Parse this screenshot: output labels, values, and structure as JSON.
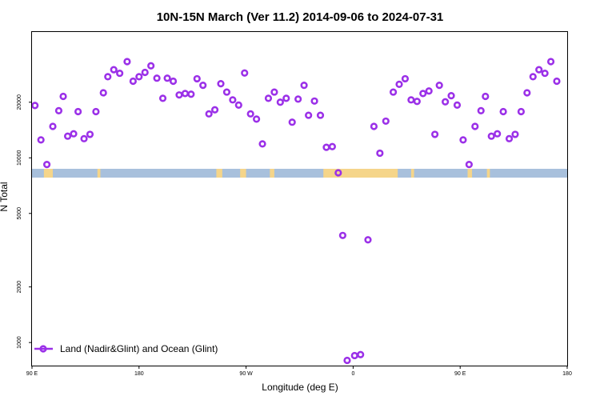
{
  "chart_data": {
    "type": "scatter",
    "title": "10N-15N March (Ver 11.2)   2014-09-06 to 2024-07-31",
    "xlabel": "Longitude (deg E)",
    "ylabel": "N Total",
    "y_scale": "log",
    "xlim": [
      90,
      450
    ],
    "ylim": [
      750,
      48000
    ],
    "x_ticks": [
      {
        "value": 90,
        "label": "90 E"
      },
      {
        "value": 162,
        "label": "180"
      },
      {
        "value": 234,
        "label": "90 W"
      },
      {
        "value": 306,
        "label": "0"
      },
      {
        "value": 378,
        "label": "90 E"
      },
      {
        "value": 450,
        "label": "180"
      }
    ],
    "y_ticks": [
      {
        "value": 1000,
        "label": "1000"
      },
      {
        "value": 2000,
        "label": "2000"
      },
      {
        "value": 5000,
        "label": "5000"
      },
      {
        "value": 10000,
        "label": "10000"
      },
      {
        "value": 20000,
        "label": "20000"
      }
    ],
    "grid": false,
    "legend_position": "bottom-left",
    "series": [
      {
        "name": "Land (Nadir&Glint) and Ocean (Glint)",
        "color": "#9b30e8",
        "points": [
          [
            92,
            19200
          ],
          [
            96,
            12500
          ],
          [
            100,
            9200
          ],
          [
            104,
            14800
          ],
          [
            108,
            18000
          ],
          [
            111,
            21500
          ],
          [
            114,
            13100
          ],
          [
            118,
            13500
          ],
          [
            121,
            17800
          ],
          [
            125,
            12700
          ],
          [
            129,
            13400
          ],
          [
            133,
            17800
          ],
          [
            138,
            22500
          ],
          [
            141,
            27500
          ],
          [
            145,
            30000
          ],
          [
            149,
            28700
          ],
          [
            154,
            33200
          ],
          [
            158,
            26000
          ],
          [
            162,
            27500
          ],
          [
            166,
            29000
          ],
          [
            170,
            31500
          ],
          [
            174,
            27000
          ],
          [
            178,
            21000
          ],
          [
            181,
            27000
          ],
          [
            185,
            26000
          ],
          [
            189,
            21900
          ],
          [
            193,
            22300
          ],
          [
            197,
            22100
          ],
          [
            201,
            26800
          ],
          [
            205,
            24700
          ],
          [
            209,
            17300
          ],
          [
            213,
            18200
          ],
          [
            217,
            25200
          ],
          [
            221,
            22700
          ],
          [
            225,
            20600
          ],
          [
            229,
            19300
          ],
          [
            233,
            28800
          ],
          [
            237,
            17300
          ],
          [
            241,
            16200
          ],
          [
            245,
            11900
          ],
          [
            249,
            21000
          ],
          [
            253,
            22700
          ],
          [
            257,
            20000
          ],
          [
            261,
            21000
          ],
          [
            265,
            15600
          ],
          [
            269,
            20800
          ],
          [
            273,
            24700
          ],
          [
            276,
            17000
          ],
          [
            280,
            20300
          ],
          [
            284,
            17000
          ],
          [
            288,
            11400
          ],
          [
            292,
            11500
          ],
          [
            296,
            8300
          ],
          [
            299,
            3800
          ],
          [
            302,
            800
          ],
          [
            307,
            850
          ],
          [
            311,
            860
          ],
          [
            316,
            3600
          ],
          [
            320,
            14800
          ],
          [
            324,
            10600
          ],
          [
            328,
            15800
          ],
          [
            333,
            22700
          ],
          [
            337,
            25000
          ],
          [
            341,
            26800
          ],
          [
            345,
            20600
          ],
          [
            349,
            20200
          ],
          [
            353,
            22300
          ],
          [
            357,
            23000
          ],
          [
            361,
            13400
          ],
          [
            364,
            24700
          ],
          [
            368,
            20100
          ],
          [
            372,
            21700
          ],
          [
            376,
            19300
          ],
          [
            380,
            12500
          ],
          [
            384,
            9200
          ],
          [
            388,
            14800
          ],
          [
            392,
            18000
          ],
          [
            395,
            21500
          ],
          [
            399,
            13100
          ],
          [
            403,
            13500
          ],
          [
            407,
            17800
          ],
          [
            411,
            12700
          ],
          [
            415,
            13400
          ],
          [
            419,
            17800
          ],
          [
            423,
            22500
          ],
          [
            427,
            27500
          ],
          [
            431,
            30000
          ],
          [
            435,
            28700
          ],
          [
            439,
            33200
          ],
          [
            443,
            26000
          ]
        ]
      }
    ]
  },
  "map_band": {
    "ocean_color": "#a8c0dc",
    "land_color": "#f5d58a"
  }
}
